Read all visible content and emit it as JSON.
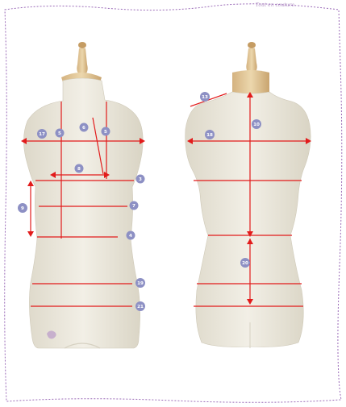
{
  "brand": {
    "text": "Tout en couture"
  },
  "colors": {
    "frame": "#9b6bb8",
    "line": "#e21b1b",
    "badge": "#8d90c4",
    "badge_text": "#ffffff",
    "fabric": "#ece8dc",
    "fabric_shadow": "#d6d1c2",
    "neck": "#d8b98c",
    "knob": "#c59c63"
  },
  "front": {
    "labels": [
      "17",
      "5",
      "6",
      "5",
      "8",
      "3",
      "9",
      "7",
      "4",
      "19",
      "21"
    ]
  },
  "back": {
    "labels": [
      "13",
      "10",
      "18",
      "20"
    ]
  }
}
